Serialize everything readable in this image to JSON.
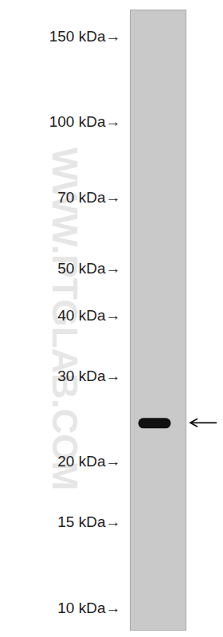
{
  "chart_data": {
    "type": "western_blot",
    "values": [
      24
    ],
    "color": "#111111",
    "log": "y",
    "ylim": [
      9,
      170
    ],
    "yticks": [
      {
        "value": 150,
        "label": "150 kDa→"
      },
      {
        "value": 100,
        "label": "100 kDa→"
      },
      {
        "value": 70,
        "label": "70 kDa→"
      },
      {
        "value": 50,
        "label": "50 kDa→"
      },
      {
        "value": 40,
        "label": "40 kDa→"
      },
      {
        "value": 30,
        "label": "30 kDa→"
      },
      {
        "value": 20,
        "label": "20 kDa→"
      },
      {
        "value": 15,
        "label": "15 kDa→"
      },
      {
        "value": 10,
        "label": "10 kDa→"
      }
    ],
    "watermark": "WWW.PTGLAB.COM"
  }
}
